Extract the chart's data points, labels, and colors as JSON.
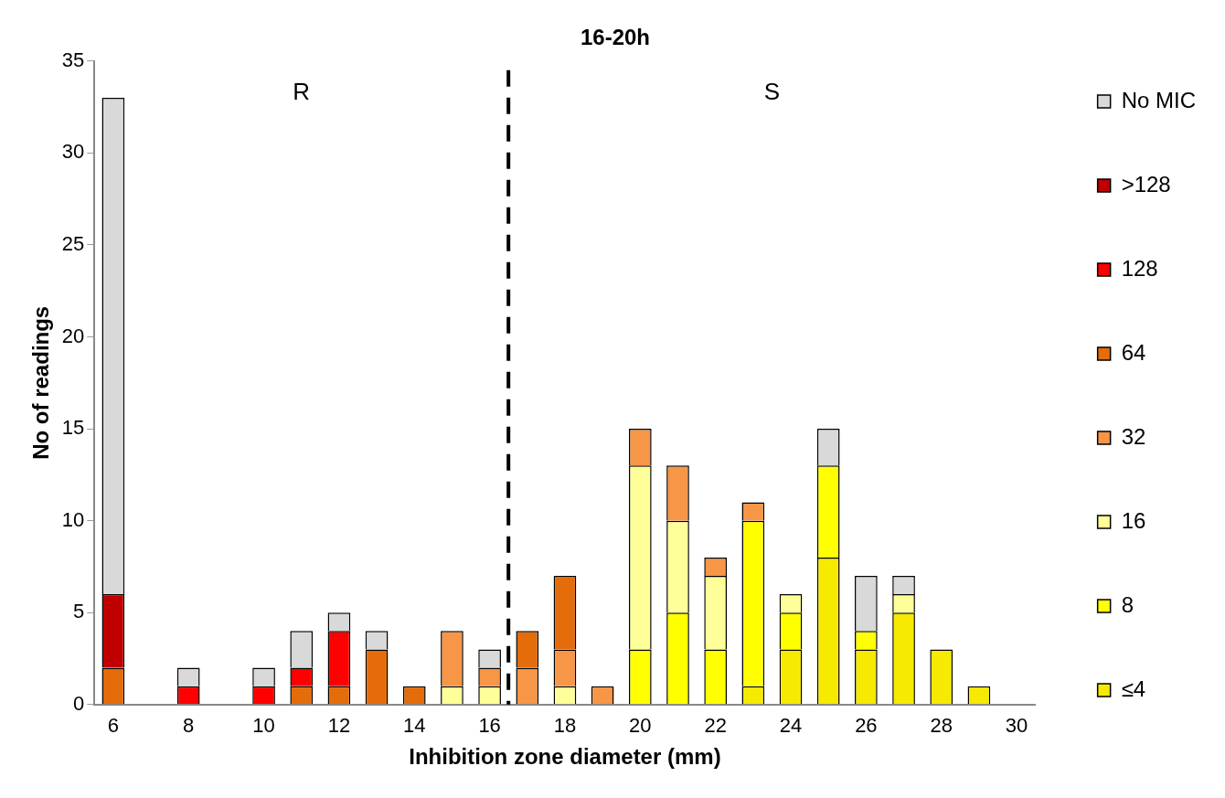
{
  "chart_data": {
    "type": "bar",
    "title": "16-20h",
    "xlabel": "Inhibition zone diameter (mm)",
    "ylabel": "No of readings",
    "x": [
      6,
      7,
      8,
      9,
      10,
      11,
      12,
      13,
      14,
      15,
      16,
      17,
      18,
      19,
      20,
      21,
      22,
      23,
      24,
      25,
      26,
      27,
      28,
      29,
      30
    ],
    "xlim": [
      5.5,
      30.5
    ],
    "xticks": [
      6,
      8,
      10,
      12,
      14,
      16,
      18,
      20,
      22,
      24,
      26,
      28,
      30
    ],
    "ylim": [
      0,
      35
    ],
    "yticks": [
      0,
      5,
      10,
      15,
      20,
      25,
      30,
      35
    ],
    "stacked": true,
    "grid": false,
    "legend": "right",
    "series": [
      {
        "name": "≤4",
        "color": "#f5ea00",
        "values": [
          0,
          0,
          0,
          0,
          0,
          0,
          0,
          0,
          0,
          0,
          0,
          0,
          0,
          0,
          0,
          0,
          0,
          1,
          3,
          8,
          3,
          5,
          3,
          1,
          0
        ]
      },
      {
        "name": "8",
        "color": "#ffff00",
        "values": [
          0,
          0,
          0,
          0,
          0,
          0,
          0,
          0,
          0,
          0,
          0,
          0,
          0,
          0,
          3,
          5,
          3,
          9,
          2,
          5,
          1,
          0,
          0,
          0,
          0
        ]
      },
      {
        "name": "16",
        "color": "#ffff99",
        "values": [
          0,
          0,
          0,
          0,
          0,
          0,
          0,
          0,
          0,
          1,
          1,
          0,
          1,
          0,
          10,
          5,
          4,
          0,
          1,
          0,
          0,
          1,
          0,
          0,
          0
        ]
      },
      {
        "name": "32",
        "color": "#f79646",
        "values": [
          0,
          0,
          0,
          0,
          0,
          0,
          0,
          0,
          0,
          3,
          1,
          2,
          2,
          1,
          2,
          3,
          1,
          1,
          0,
          0,
          0,
          0,
          0,
          0,
          0
        ]
      },
      {
        "name": "64",
        "color": "#e46c0a",
        "values": [
          2,
          0,
          0,
          0,
          0,
          1,
          1,
          3,
          1,
          0,
          0,
          2,
          4,
          0,
          0,
          0,
          0,
          0,
          0,
          0,
          0,
          0,
          0,
          0,
          0
        ]
      },
      {
        "name": "128",
        "color": "#ff0000",
        "values": [
          0,
          0,
          1,
          0,
          1,
          1,
          3,
          0,
          0,
          0,
          0,
          0,
          0,
          0,
          0,
          0,
          0,
          0,
          0,
          0,
          0,
          0,
          0,
          0,
          0
        ]
      },
      {
        "name": ">128",
        "color": "#c00000",
        "values": [
          4,
          0,
          0,
          0,
          0,
          0,
          0,
          0,
          0,
          0,
          0,
          0,
          0,
          0,
          0,
          0,
          0,
          0,
          0,
          0,
          0,
          0,
          0,
          0,
          0
        ]
      },
      {
        "name": "No MIC",
        "color": "#d9d9d9",
        "values": [
          27,
          0,
          1,
          0,
          1,
          2,
          1,
          1,
          0,
          0,
          1,
          0,
          0,
          0,
          0,
          0,
          0,
          0,
          0,
          2,
          3,
          1,
          0,
          0,
          0
        ]
      }
    ],
    "ref_lines": [
      {
        "axis": "x",
        "value": 16.5,
        "color": "#000000",
        "line_style": "dashed"
      }
    ],
    "annotations": [
      "R",
      "S"
    ]
  }
}
